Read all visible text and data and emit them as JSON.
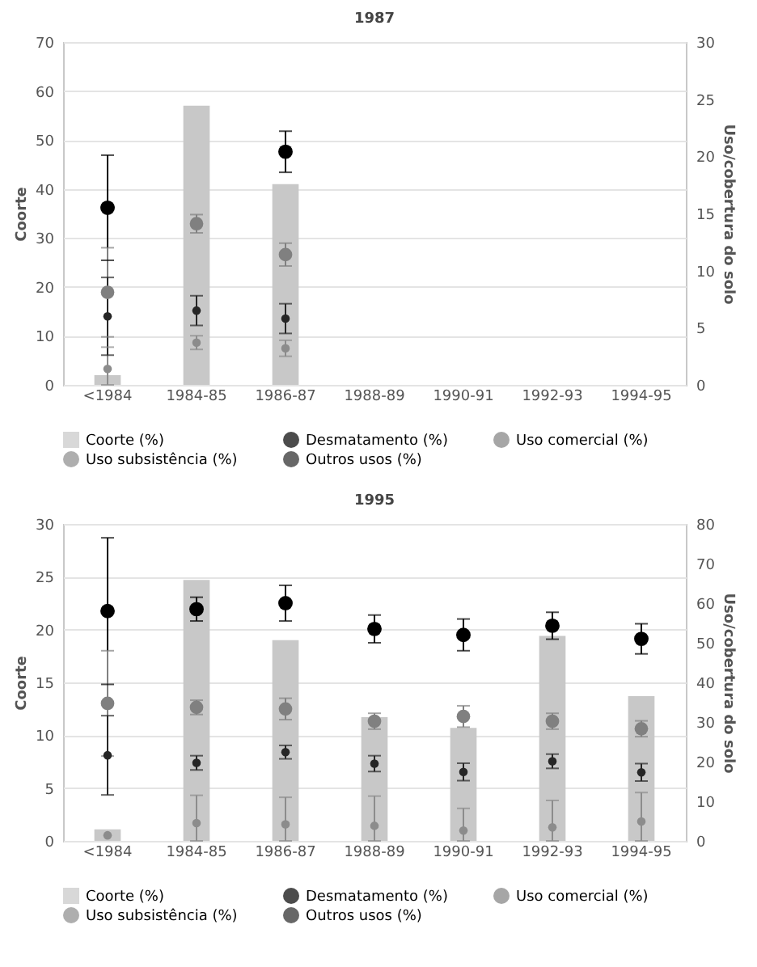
{
  "chart_data": [
    {
      "type": "bar",
      "title": "1987",
      "ylabel": "Coorte",
      "y2label": "Uso/cobertura do solo",
      "categories": [
        "<1984",
        "1984-85",
        "1986-87",
        "1988-89",
        "1990-91",
        "1992-93",
        "1994-95"
      ],
      "ylim": [
        0,
        70
      ],
      "yticks": [
        0,
        10,
        20,
        30,
        40,
        50,
        60,
        70
      ],
      "y2lim": [
        0,
        30
      ],
      "y2ticks": [
        0,
        5,
        10,
        15,
        20,
        25,
        30
      ],
      "grid": "y",
      "legend": "bottom",
      "marker": "circle",
      "series": [
        {
          "name": "Coorte (%)",
          "type": "bar",
          "color": "#c8c8c8",
          "values": [
            2,
            57,
            41,
            0,
            0,
            0,
            0
          ]
        },
        {
          "name": "Desmatamento (%)",
          "type": "scatter",
          "axis": "y2",
          "color": "#000000",
          "values": [
            15.5,
            null,
            20.4,
            null,
            null,
            null,
            null
          ],
          "errors": [
            4.6,
            null,
            1.8,
            null,
            null,
            null,
            null
          ]
        },
        {
          "name": "Uso comercial (%)",
          "type": "scatter",
          "axis": "y2",
          "color": "#808080",
          "values": [
            8.1,
            14.1,
            11.4,
            null,
            null,
            null,
            null
          ],
          "errors": [
            3.9,
            0.8,
            1.0,
            null,
            null,
            null,
            null
          ]
        },
        {
          "name": "Uso subsistência (%)",
          "type": "scatter",
          "axis": "y2",
          "color": "#8c8c8c",
          "values": [
            1.4,
            3.7,
            3.2,
            null,
            null,
            null,
            null
          ],
          "errors": [
            [
              0,
              3.3
            ],
            0.6,
            0.7,
            null,
            null,
            null,
            null
          ]
        },
        {
          "name": "Outros usos (%)",
          "type": "scatter",
          "axis": "y2",
          "color": "#262626",
          "values": [
            6.0,
            6.5,
            5.8,
            null,
            null,
            null,
            null
          ],
          "errors": [
            3.4,
            1.3,
            1.3,
            null,
            null,
            null,
            null
          ]
        }
      ]
    },
    {
      "type": "bar",
      "title": "1995",
      "ylabel": "Coorte",
      "y2label": "Uso/cobertura do solo",
      "categories": [
        "<1984",
        "1984-85",
        "1986-87",
        "1988-89",
        "1990-91",
        "1992-93",
        "1994-95"
      ],
      "ylim": [
        0,
        30
      ],
      "yticks": [
        0,
        5,
        10,
        15,
        20,
        25,
        30
      ],
      "y2lim": [
        0,
        80
      ],
      "y2ticks": [
        0,
        10,
        20,
        30,
        40,
        50,
        60,
        70,
        80
      ],
      "grid": "y",
      "legend": "bottom",
      "marker": "circle",
      "series": [
        {
          "name": "Coorte (%)",
          "type": "bar",
          "color": "#c8c8c8",
          "values": [
            1.1,
            24.7,
            19.0,
            11.7,
            10.7,
            19.4,
            13.7
          ]
        },
        {
          "name": "Desmatamento (%)",
          "type": "scatter",
          "axis": "y2",
          "color": "#000000",
          "values": [
            58,
            58.5,
            60,
            53.5,
            52,
            54.3,
            51
          ],
          "errors": [
            18.5,
            3,
            4.5,
            3.5,
            4,
            3.4,
            3.8
          ]
        },
        {
          "name": "Uso comercial (%)",
          "type": "scatter",
          "axis": "y2",
          "color": "#808080",
          "values": [
            34.7,
            33.7,
            33.3,
            30.2,
            31.4,
            30.2,
            28.3
          ],
          "errors": [
            13.3,
            1.8,
            2.7,
            2,
            2.7,
            2,
            2
          ]
        },
        {
          "name": "Uso subsistência (%)",
          "type": "scatter",
          "axis": "y2",
          "color": "#8c8c8c",
          "values": [
            1.4,
            4.5,
            4.2,
            3.8,
            2.6,
            3.4,
            4.9
          ],
          "errors": [
            null,
            [
              0,
              11.5
            ],
            [
              0,
              11
            ],
            [
              0,
              11.3
            ],
            [
              0,
              8.2
            ],
            [
              0,
              10.2
            ],
            [
              0,
              12.2
            ]
          ]
        },
        {
          "name": "Outros usos (%)",
          "type": "scatter",
          "axis": "y2",
          "color": "#262626",
          "values": [
            21.6,
            19.7,
            22.4,
            19.5,
            17.4,
            20.1,
            17.3
          ],
          "errors": [
            10,
            1.8,
            1.7,
            2,
            2.2,
            1.8,
            2.2
          ]
        }
      ]
    }
  ]
}
